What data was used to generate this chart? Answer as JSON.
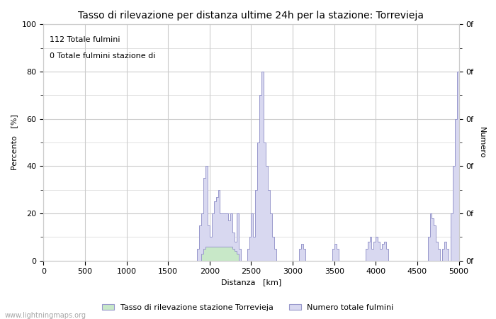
{
  "title": "Tasso di rilevazione per distanza ultime 24h per la stazione: Torrevieja",
  "xlabel": "Distanza   [km]",
  "ylabel_left": "Percento   [%]",
  "ylabel_right": "Numero",
  "annotation_line1": "112 Totale fulmini",
  "annotation_line2": "0 Totale fulmini stazione di",
  "xlim": [
    0,
    5000
  ],
  "ylim": [
    0,
    100
  ],
  "xticks": [
    0,
    500,
    1000,
    1500,
    2000,
    2500,
    3000,
    3500,
    4000,
    4500,
    5000
  ],
  "yticks_left": [
    0,
    20,
    40,
    60,
    80,
    100
  ],
  "yticks_right_labels": [
    "0f",
    "0f",
    "0f",
    "0f",
    "0f",
    "0f"
  ],
  "yticks_right_positions": [
    0,
    20,
    40,
    60,
    80,
    100
  ],
  "legend_label_green": "Tasso di rilevazione stazione Torrevieja",
  "legend_label_blue": "Numero totale fulmini",
  "watermark": "www.lightningmaps.org",
  "line_color": "#9999cc",
  "fill_green_color": "#c8e8c8",
  "fill_blue_color": "#d8d8f0",
  "background_color": "#ffffff",
  "grid_color": "#cccccc",
  "title_fontsize": 10,
  "label_fontsize": 8,
  "tick_fontsize": 8,
  "minor_yticks": [
    10,
    30,
    50,
    70,
    90
  ],
  "figsize": [
    7.0,
    4.5
  ],
  "dpi": 100
}
